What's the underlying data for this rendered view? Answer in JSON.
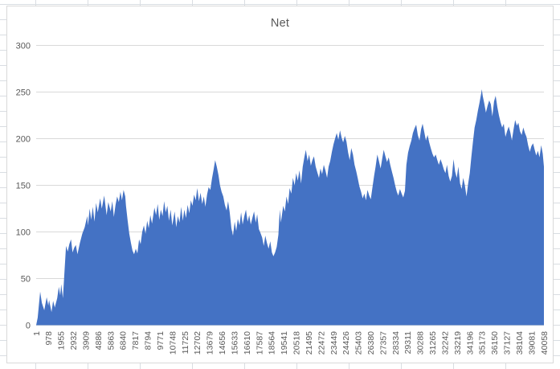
{
  "title": "Net",
  "colors": {
    "series_fill": "#4472C4",
    "gridline": "#D9D9D9",
    "chart_border": "#D9D9D9",
    "axis_text": "#595959",
    "sheet_grid": "#D9DDE2"
  },
  "chart_data": {
    "type": "area",
    "title": "Net",
    "legend": "none",
    "grid": "horizontal",
    "xlabel": "",
    "ylabel": "",
    "ylim": [
      0,
      300
    ],
    "xlim": [
      1,
      40058
    ],
    "y_ticks": [
      0,
      50,
      100,
      150,
      200,
      250,
      300
    ],
    "x_ticks": [
      1,
      978,
      1955,
      2932,
      3909,
      4886,
      5863,
      6840,
      7817,
      8794,
      9771,
      10748,
      11725,
      12702,
      13679,
      14656,
      15633,
      16610,
      17587,
      18564,
      19541,
      20518,
      21495,
      22472,
      23449,
      24426,
      25403,
      26380,
      27357,
      28334,
      29311,
      30288,
      31265,
      32242,
      33219,
      34196,
      35173,
      36150,
      37127,
      38104,
      39081,
      40058
    ],
    "x_tick_rotation_deg": 90,
    "points": [
      [
        1,
        0
      ],
      [
        120,
        8
      ],
      [
        320,
        36
      ],
      [
        450,
        24
      ],
      [
        640,
        16
      ],
      [
        830,
        30
      ],
      [
        960,
        21
      ],
      [
        1020,
        27
      ],
      [
        1210,
        14
      ],
      [
        1340,
        26
      ],
      [
        1470,
        19
      ],
      [
        1660,
        29
      ],
      [
        1790,
        41
      ],
      [
        1900,
        32
      ],
      [
        1980,
        44
      ],
      [
        2110,
        29
      ],
      [
        2240,
        58
      ],
      [
        2360,
        85
      ],
      [
        2490,
        79
      ],
      [
        2620,
        87
      ],
      [
        2750,
        92
      ],
      [
        2870,
        78
      ],
      [
        3000,
        83
      ],
      [
        3130,
        86
      ],
      [
        3260,
        76
      ],
      [
        3450,
        88
      ],
      [
        3640,
        98
      ],
      [
        3830,
        105
      ],
      [
        4030,
        117
      ],
      [
        4090,
        107
      ],
      [
        4220,
        125
      ],
      [
        4340,
        113
      ],
      [
        4470,
        127
      ],
      [
        4600,
        111
      ],
      [
        4730,
        131
      ],
      [
        4860,
        121
      ],
      [
        5050,
        136
      ],
      [
        5180,
        125
      ],
      [
        5370,
        139
      ],
      [
        5560,
        118
      ],
      [
        5690,
        132
      ],
      [
        5880,
        122
      ],
      [
        6010,
        133
      ],
      [
        6130,
        116
      ],
      [
        6260,
        129
      ],
      [
        6390,
        138
      ],
      [
        6520,
        132
      ],
      [
        6650,
        143
      ],
      [
        6770,
        134
      ],
      [
        6900,
        145
      ],
      [
        7030,
        138
      ],
      [
        7090,
        128
      ],
      [
        7220,
        112
      ],
      [
        7350,
        98
      ],
      [
        7480,
        88
      ],
      [
        7600,
        80
      ],
      [
        7730,
        76
      ],
      [
        7860,
        82
      ],
      [
        7990,
        77
      ],
      [
        8120,
        92
      ],
      [
        8240,
        87
      ],
      [
        8370,
        100
      ],
      [
        8500,
        107
      ],
      [
        8630,
        98
      ],
      [
        8760,
        112
      ],
      [
        8880,
        104
      ],
      [
        9010,
        118
      ],
      [
        9140,
        109
      ],
      [
        9330,
        126
      ],
      [
        9460,
        118
      ],
      [
        9590,
        130
      ],
      [
        9710,
        113
      ],
      [
        9840,
        124
      ],
      [
        9970,
        117
      ],
      [
        10100,
        133
      ],
      [
        10220,
        121
      ],
      [
        10350,
        128
      ],
      [
        10480,
        112
      ],
      [
        10610,
        124
      ],
      [
        10740,
        107
      ],
      [
        10930,
        122
      ],
      [
        11050,
        105
      ],
      [
        11180,
        117
      ],
      [
        11310,
        110
      ],
      [
        11440,
        127
      ],
      [
        11570,
        112
      ],
      [
        11690,
        124
      ],
      [
        11820,
        115
      ],
      [
        11950,
        129
      ],
      [
        12080,
        120
      ],
      [
        12210,
        134
      ],
      [
        12330,
        128
      ],
      [
        12460,
        140
      ],
      [
        12590,
        134
      ],
      [
        12710,
        147
      ],
      [
        12840,
        133
      ],
      [
        12970,
        142
      ],
      [
        13100,
        130
      ],
      [
        13230,
        138
      ],
      [
        13350,
        127
      ],
      [
        13480,
        140
      ],
      [
        13610,
        148
      ],
      [
        13740,
        145
      ],
      [
        13870,
        157
      ],
      [
        13990,
        166
      ],
      [
        14120,
        177
      ],
      [
        14250,
        170
      ],
      [
        14380,
        161
      ],
      [
        14500,
        150
      ],
      [
        14630,
        143
      ],
      [
        14760,
        138
      ],
      [
        14890,
        129
      ],
      [
        15020,
        123
      ],
      [
        15140,
        133
      ],
      [
        15270,
        121
      ],
      [
        15400,
        104
      ],
      [
        15530,
        96
      ],
      [
        15660,
        111
      ],
      [
        15780,
        101
      ],
      [
        15910,
        114
      ],
      [
        16040,
        107
      ],
      [
        16170,
        121
      ],
      [
        16290,
        108
      ],
      [
        16420,
        117
      ],
      [
        16550,
        124
      ],
      [
        16680,
        111
      ],
      [
        16810,
        118
      ],
      [
        16930,
        108
      ],
      [
        17060,
        115
      ],
      [
        17190,
        122
      ],
      [
        17320,
        110
      ],
      [
        17440,
        119
      ],
      [
        17570,
        103
      ],
      [
        17700,
        99
      ],
      [
        17830,
        94
      ],
      [
        17960,
        85
      ],
      [
        18080,
        96
      ],
      [
        18210,
        88
      ],
      [
        18340,
        82
      ],
      [
        18470,
        90
      ],
      [
        18600,
        78
      ],
      [
        18720,
        74
      ],
      [
        18850,
        78
      ],
      [
        18980,
        84
      ],
      [
        19110,
        97
      ],
      [
        19170,
        112
      ],
      [
        19240,
        124
      ],
      [
        19300,
        110
      ],
      [
        19360,
        115
      ],
      [
        19490,
        128
      ],
      [
        19620,
        122
      ],
      [
        19750,
        138
      ],
      [
        19880,
        130
      ],
      [
        20000,
        147
      ],
      [
        20130,
        141
      ],
      [
        20260,
        158
      ],
      [
        20390,
        150
      ],
      [
        20520,
        163
      ],
      [
        20640,
        155
      ],
      [
        20770,
        166
      ],
      [
        20900,
        152
      ],
      [
        21030,
        170
      ],
      [
        21160,
        180
      ],
      [
        21280,
        188
      ],
      [
        21410,
        176
      ],
      [
        21540,
        183
      ],
      [
        21670,
        171
      ],
      [
        21790,
        177
      ],
      [
        21920,
        181
      ],
      [
        22050,
        170
      ],
      [
        22180,
        164
      ],
      [
        22310,
        158
      ],
      [
        22430,
        168
      ],
      [
        22560,
        162
      ],
      [
        22690,
        172
      ],
      [
        22820,
        166
      ],
      [
        22950,
        158
      ],
      [
        23070,
        170
      ],
      [
        23200,
        176
      ],
      [
        23330,
        186
      ],
      [
        23460,
        194
      ],
      [
        23580,
        200
      ],
      [
        23710,
        206
      ],
      [
        23840,
        199
      ],
      [
        23970,
        209
      ],
      [
        24100,
        201
      ],
      [
        24220,
        196
      ],
      [
        24350,
        203
      ],
      [
        24480,
        197
      ],
      [
        24610,
        185
      ],
      [
        24740,
        177
      ],
      [
        24860,
        190
      ],
      [
        24990,
        183
      ],
      [
        25120,
        172
      ],
      [
        25250,
        165
      ],
      [
        25380,
        157
      ],
      [
        25500,
        149
      ],
      [
        25630,
        143
      ],
      [
        25760,
        136
      ],
      [
        25890,
        141
      ],
      [
        26020,
        134
      ],
      [
        26140,
        145
      ],
      [
        26270,
        139
      ],
      [
        26400,
        135
      ],
      [
        26530,
        148
      ],
      [
        26660,
        160
      ],
      [
        26780,
        170
      ],
      [
        26910,
        183
      ],
      [
        27040,
        176
      ],
      [
        27170,
        168
      ],
      [
        27290,
        178
      ],
      [
        27420,
        188
      ],
      [
        27550,
        181
      ],
      [
        27680,
        175
      ],
      [
        27810,
        180
      ],
      [
        27930,
        172
      ],
      [
        28060,
        165
      ],
      [
        28190,
        158
      ],
      [
        28320,
        150
      ],
      [
        28450,
        143
      ],
      [
        28570,
        139
      ],
      [
        28700,
        146
      ],
      [
        28830,
        141
      ],
      [
        28960,
        137
      ],
      [
        29090,
        144
      ],
      [
        29210,
        172
      ],
      [
        29340,
        185
      ],
      [
        29470,
        192
      ],
      [
        29600,
        198
      ],
      [
        29720,
        206
      ],
      [
        29850,
        211
      ],
      [
        29980,
        215
      ],
      [
        30110,
        204
      ],
      [
        30240,
        198
      ],
      [
        30370,
        210
      ],
      [
        30490,
        216
      ],
      [
        30620,
        207
      ],
      [
        30750,
        198
      ],
      [
        30880,
        204
      ],
      [
        31010,
        196
      ],
      [
        31130,
        190
      ],
      [
        31260,
        184
      ],
      [
        31390,
        180
      ],
      [
        31520,
        183
      ],
      [
        31650,
        177
      ],
      [
        31770,
        172
      ],
      [
        31900,
        178
      ],
      [
        32030,
        173
      ],
      [
        32160,
        167
      ],
      [
        32290,
        163
      ],
      [
        32410,
        172
      ],
      [
        32540,
        160
      ],
      [
        32670,
        154
      ],
      [
        32800,
        160
      ],
      [
        32930,
        178
      ],
      [
        33050,
        165
      ],
      [
        33180,
        158
      ],
      [
        33310,
        170
      ],
      [
        33440,
        152
      ],
      [
        33570,
        146
      ],
      [
        33690,
        158
      ],
      [
        33820,
        150
      ],
      [
        33950,
        138
      ],
      [
        34080,
        152
      ],
      [
        34210,
        163
      ],
      [
        34330,
        180
      ],
      [
        34460,
        197
      ],
      [
        34590,
        212
      ],
      [
        34720,
        220
      ],
      [
        34850,
        230
      ],
      [
        34970,
        238
      ],
      [
        35100,
        248
      ],
      [
        35160,
        253
      ],
      [
        35230,
        246
      ],
      [
        35350,
        238
      ],
      [
        35480,
        228
      ],
      [
        35610,
        235
      ],
      [
        35740,
        241
      ],
      [
        35870,
        237
      ],
      [
        35990,
        224
      ],
      [
        36120,
        240
      ],
      [
        36250,
        246
      ],
      [
        36380,
        234
      ],
      [
        36510,
        225
      ],
      [
        36630,
        218
      ],
      [
        36760,
        212
      ],
      [
        36890,
        216
      ],
      [
        37020,
        202
      ],
      [
        37150,
        208
      ],
      [
        37280,
        213
      ],
      [
        37400,
        207
      ],
      [
        37530,
        198
      ],
      [
        37660,
        210
      ],
      [
        37790,
        220
      ],
      [
        37920,
        214
      ],
      [
        38040,
        217
      ],
      [
        38170,
        208
      ],
      [
        38300,
        204
      ],
      [
        38430,
        212
      ],
      [
        38560,
        206
      ],
      [
        38680,
        202
      ],
      [
        38810,
        193
      ],
      [
        38940,
        186
      ],
      [
        39070,
        192
      ],
      [
        39200,
        195
      ],
      [
        39330,
        188
      ],
      [
        39450,
        182
      ],
      [
        39580,
        187
      ],
      [
        39710,
        180
      ],
      [
        39840,
        193
      ],
      [
        39960,
        184
      ],
      [
        40058,
        170
      ]
    ]
  }
}
